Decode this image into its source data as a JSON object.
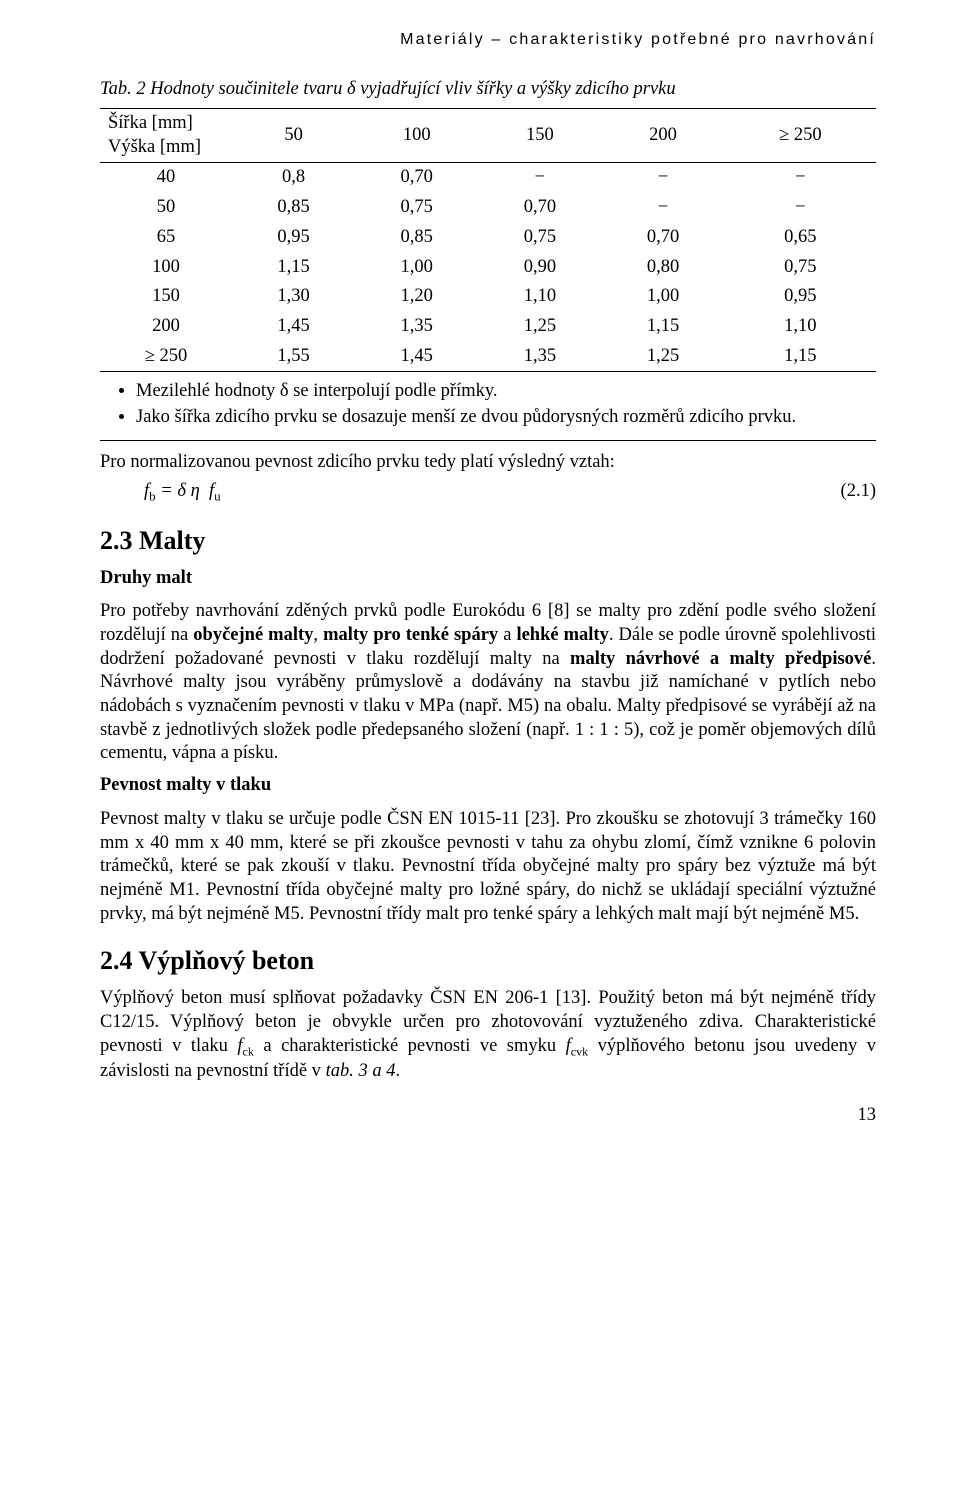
{
  "running_head": "Materiály – charakteristiky potřebné pro navrhování",
  "table2": {
    "caption": "Tab. 2 Hodnoty součinitele tvaru δ vyjadřující vliv šířky a výšky zdicího prvku",
    "head_left_l1": "Šířka [mm]",
    "head_left_l2": "Výška [mm]",
    "col_headers": [
      "50",
      "100",
      "150",
      "200",
      "≥ 250"
    ],
    "rows": [
      {
        "h": "40",
        "v": [
          "0,8",
          "0,70",
          "−",
          "−",
          "−"
        ]
      },
      {
        "h": "50",
        "v": [
          "0,85",
          "0,75",
          "0,70",
          "−",
          "−"
        ]
      },
      {
        "h": "65",
        "v": [
          "0,95",
          "0,85",
          "0,75",
          "0,70",
          "0,65"
        ]
      },
      {
        "h": "100",
        "v": [
          "1,15",
          "1,00",
          "0,90",
          "0,80",
          "0,75"
        ]
      },
      {
        "h": "150",
        "v": [
          "1,30",
          "1,20",
          "1,10",
          "1,00",
          "0,95"
        ]
      },
      {
        "h": "200",
        "v": [
          "1,45",
          "1,35",
          "1,25",
          "1,15",
          "1,10"
        ]
      },
      {
        "h": "≥ 250",
        "v": [
          "1,55",
          "1,45",
          "1,35",
          "1,25",
          "1,15"
        ]
      }
    ],
    "notes": [
      "Mezilehlé hodnoty δ se interpolují podle přímky.",
      "Jako šířka zdicího prvku se dosazuje menší ze dvou půdorysných rozměrů zdicího prvku."
    ]
  },
  "para_norm": "Pro normalizovanou pevnost zdicího prvku tedy platí výsledný vztah:",
  "eq21": {
    "num": "(2.1)"
  },
  "sect23": {
    "title": "2.3 Malty",
    "h_druhy": "Druhy malt",
    "p_druhy": "Pro potřeby navrhování zděných prvků podle Eurokódu 6 [8] se malty pro zdění podle svého složení rozdělují na <b>obyčejné malty</b>, <b>malty pro tenké spáry</b> a <b>lehké malty</b>. Dále se podle úrovně spolehlivosti dodržení požadované pevnosti v tlaku rozdělují malty na <b>malty návrhové a malty předpisové</b>. Návrhové malty jsou vyráběny průmyslově a dodávány na stavbu již namíchané v pytlích nebo nádobách s vyznačením pevnosti v tlaku v MPa (např. M5) na obalu. Malty předpisové se vyrábějí až na stavbě z jednotlivých složek podle předepsaného složení (např. 1 : 1 : 5), což je poměr objemových dílů cementu, vápna a písku.",
    "h_pevnost": "Pevnost malty v tlaku",
    "p_pevnost": "Pevnost malty v tlaku se určuje podle ČSN EN 1015-11 [23]. Pro zkoušku se zhotovují 3 trámečky 160 mm x 40 mm x 40 mm, které se při zkoušce pevnosti v tahu za ohybu zlomí, čímž vznikne 6 polovin trámečků, které se pak zkouší v tlaku. Pevnostní třída obyčejné malty pro spáry bez výztuže má být nejméně M1. Pevnostní třída obyčejné malty pro ložné spáry, do nichž se ukládají speciální výztužné prvky, má být nejméně M5. Pevnostní třídy malt pro tenké spáry a lehkých malt mají být nejméně M5."
  },
  "sect24": {
    "title": "2.4 Výplňový beton",
    "p": "Výplňový beton musí splňovat požadavky ČSN EN 206-1 [13]. Použitý beton má být nejméně třídy C12/15. Výplňový beton je obvykle určen pro zhotovování vyztuženého zdiva. Charakteristické pevnosti v tlaku <span class=\"i\">f</span><span class=\"sub\">ck</span> a charakteristické pevnosti ve smyku <span class=\"i\">f</span><span class=\"sub\">cvk</span> výplňového betonu jsou uvedeny v závislosti na pevnostní třídě v <span class=\"i\">tab. 3 a 4</span>."
  },
  "page_number": "13"
}
